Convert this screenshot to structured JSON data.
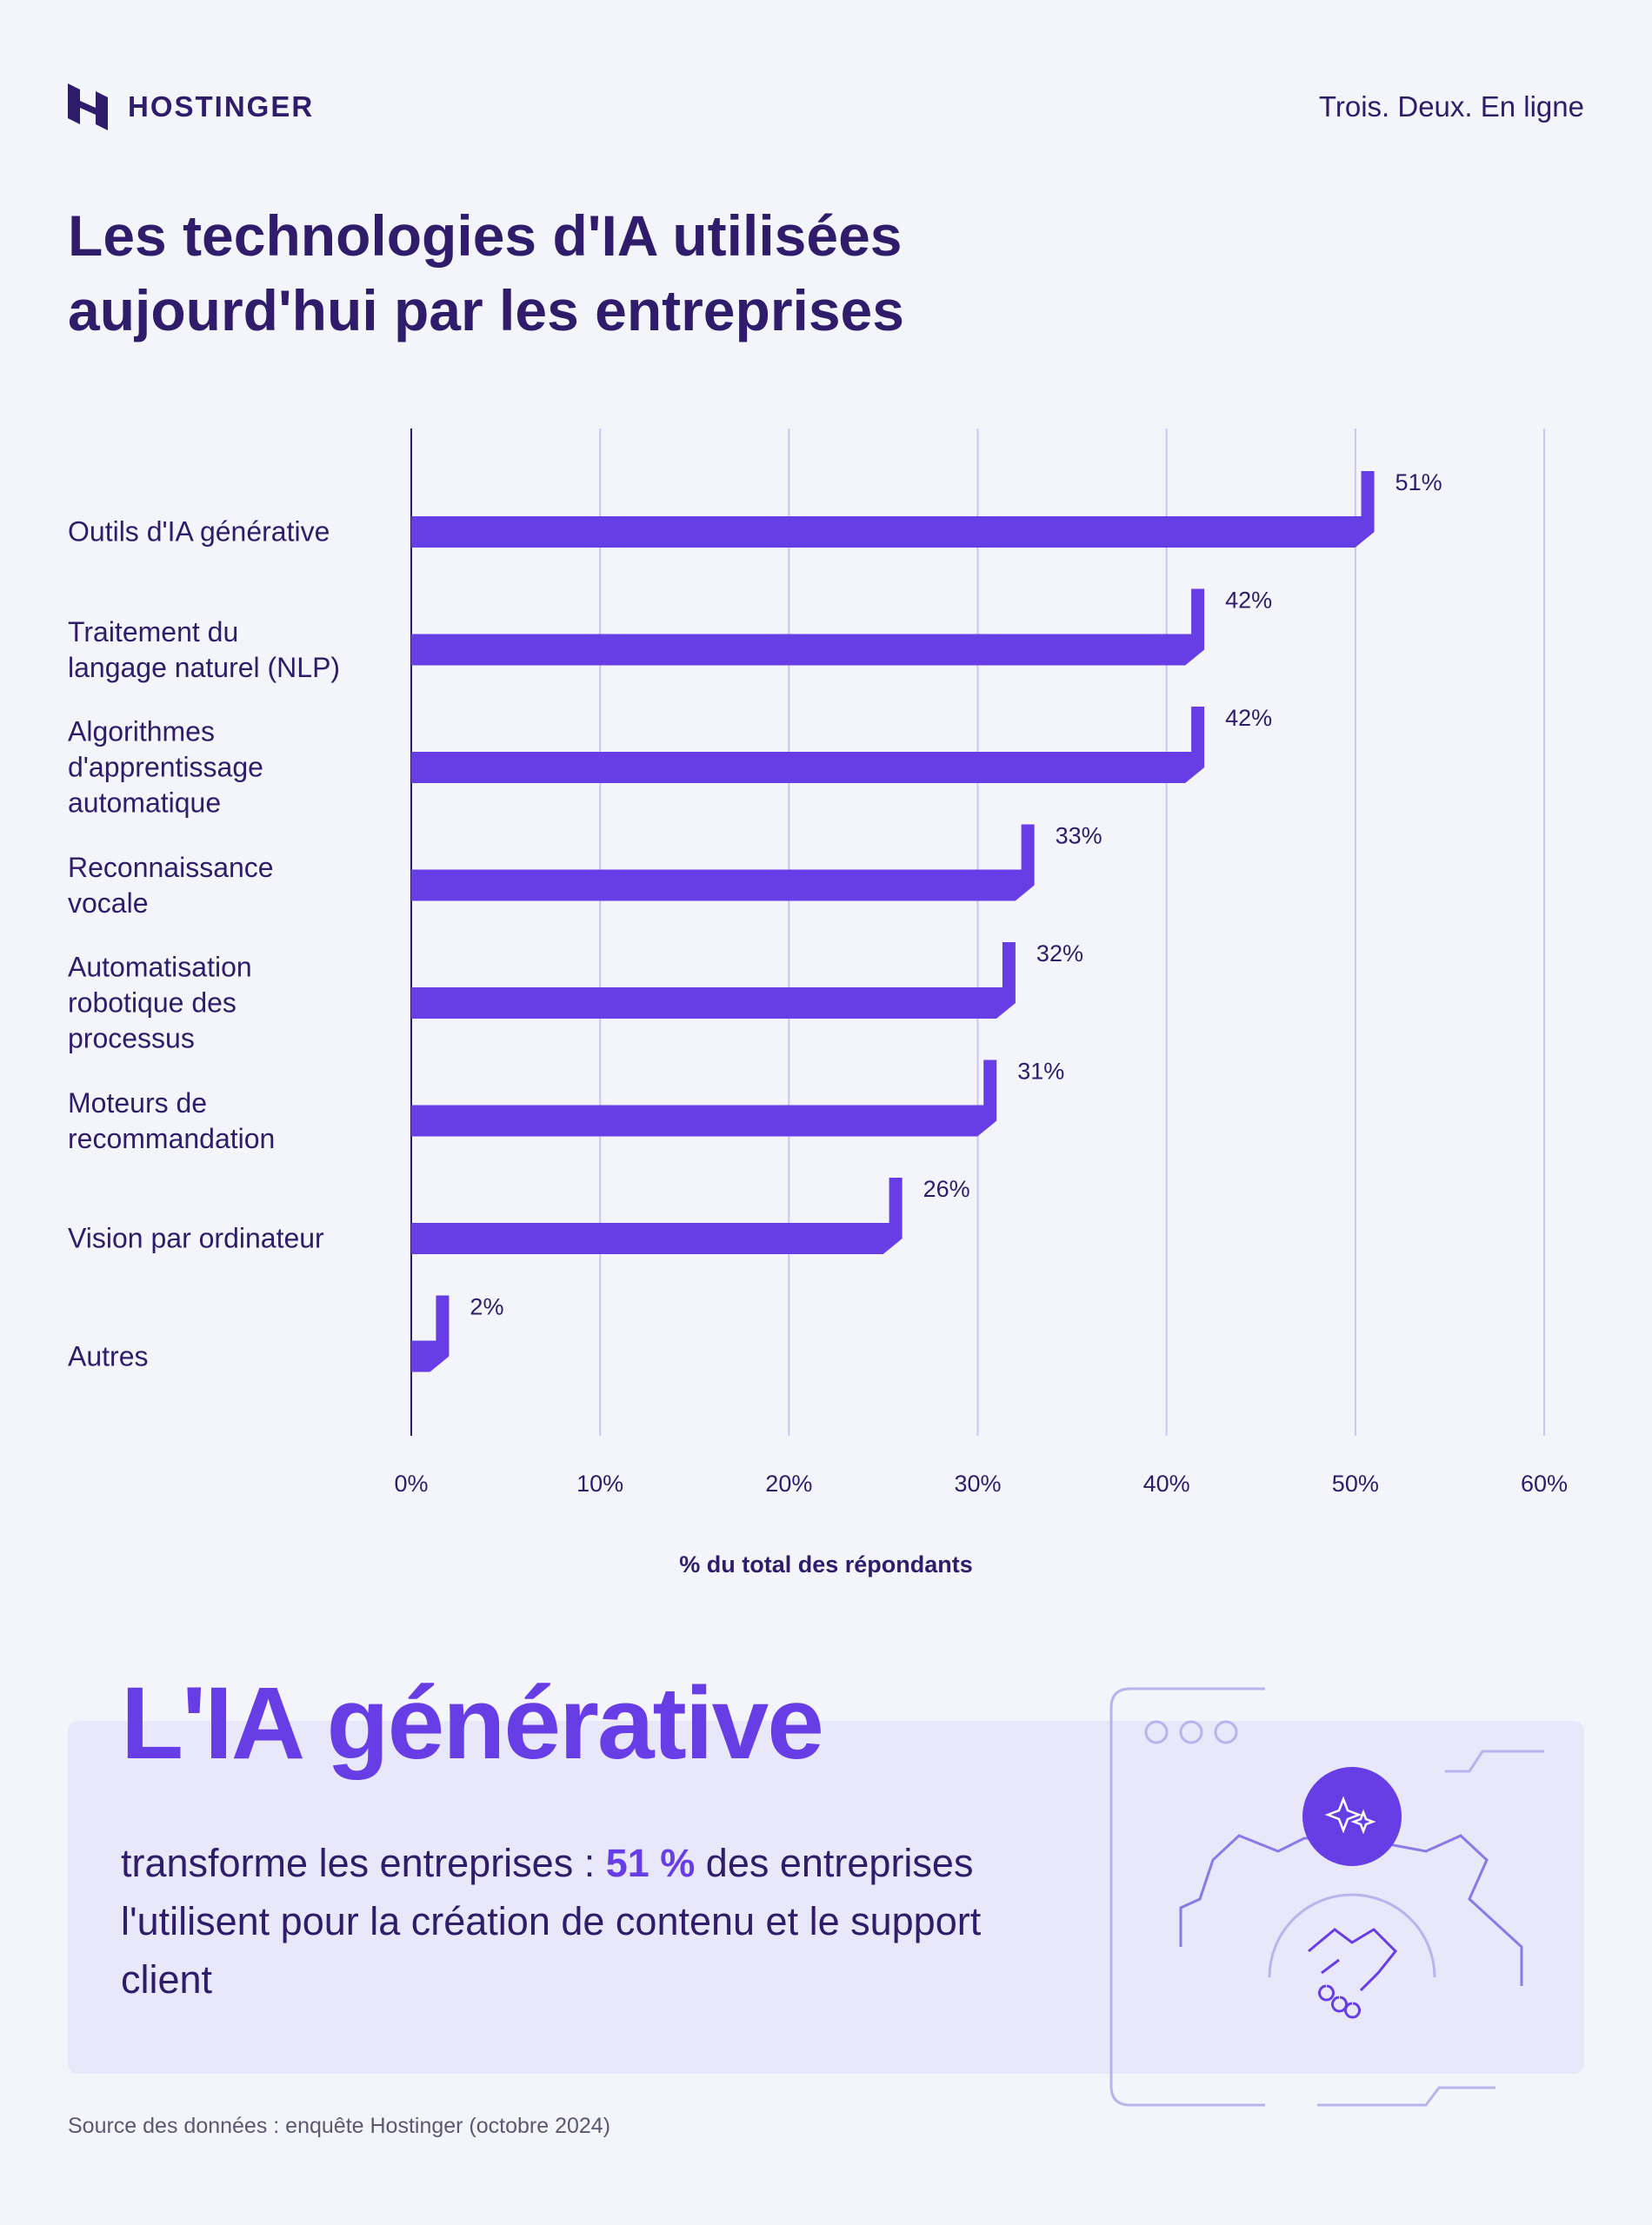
{
  "header": {
    "brand": "HOSTINGER",
    "tagline": "Trois. Deux. En ligne"
  },
  "title": "Les technologies d'IA utilisées\naujourd'hui par les entreprises",
  "chart_data": {
    "type": "hbar",
    "x_label": "% du total des répondants",
    "categories": [
      "Outils d'IA générative",
      "Traitement du\nlangage naturel (NLP)",
      "Algorithmes\nd'apprentissage\nautomatique",
      "Reconnaissance\nvocale",
      "Automatisation\nrobotique des\nprocessus",
      "Moteurs de\nrecommandation",
      "Vision par ordinateur",
      "Autres"
    ],
    "values": [
      51,
      42,
      42,
      33,
      32,
      31,
      26,
      2
    ],
    "value_labels": [
      "51%",
      "42%",
      "42%",
      "33%",
      "32%",
      "31%",
      "26%",
      "2%"
    ],
    "color": "#673de6",
    "xlim": [
      0,
      60
    ],
    "xticks": [
      {
        "value": 0,
        "label": "0%"
      },
      {
        "value": 10,
        "label": "10%"
      },
      {
        "value": 20,
        "label": "20%"
      },
      {
        "value": 30,
        "label": "30%"
      },
      {
        "value": 40,
        "label": "40%"
      },
      {
        "value": 50,
        "label": "50%"
      },
      {
        "value": 60,
        "label": "60%"
      }
    ],
    "grid": true
  },
  "highlight": {
    "heading": "L'IA générative",
    "text_before": "transforme les entreprises : ",
    "text_highlight": "51 %",
    "text_after": " des entreprises l'utilisent pour la création de contenu et le support client"
  },
  "source": "Source des données : enquête Hostinger (octobre 2024)"
}
